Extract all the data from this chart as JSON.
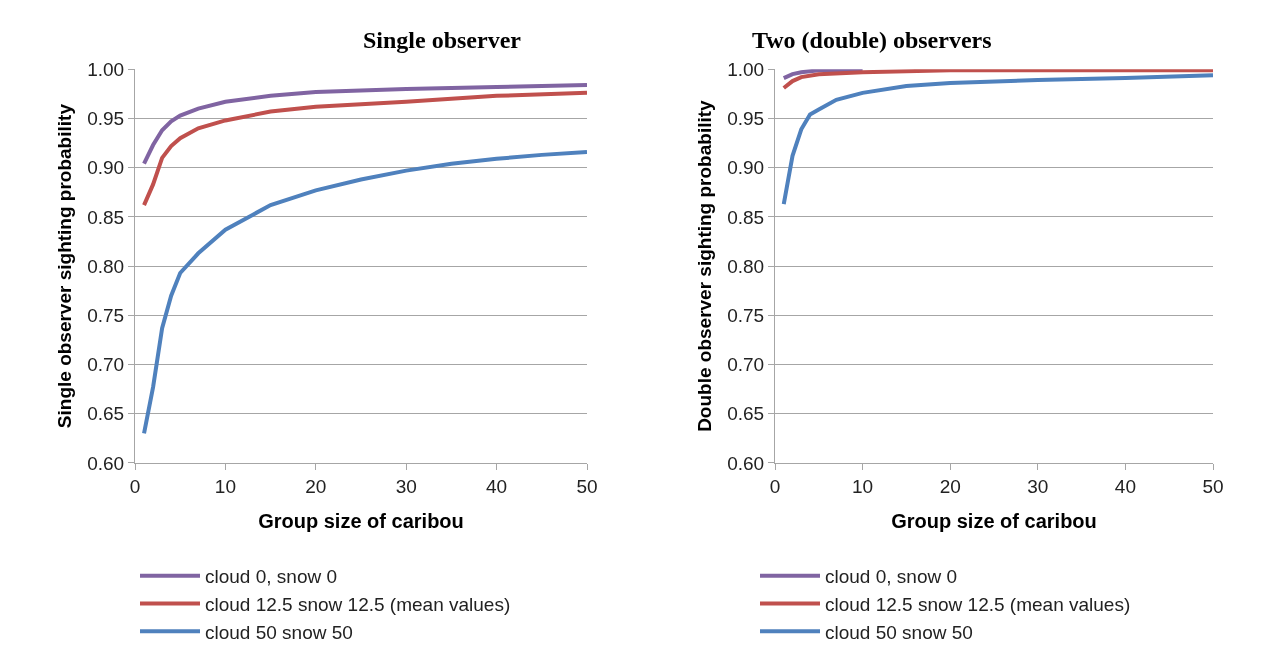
{
  "chart_data": [
    {
      "type": "line",
      "title": "Single observer",
      "xlabel": "Group size of caribou",
      "ylabel": "Single observer sighting probability",
      "xlim": [
        0,
        50
      ],
      "xticks": [
        0,
        10,
        20,
        30,
        40,
        50
      ],
      "ylim": [
        0.6,
        1.0
      ],
      "yticks": [
        {
          "value": 0.6,
          "label": "0.60"
        },
        {
          "value": 0.65,
          "label": "0.65"
        },
        {
          "value": 0.7,
          "label": "0.70"
        },
        {
          "value": 0.75,
          "label": "0.75"
        },
        {
          "value": 0.8,
          "label": "0.80"
        },
        {
          "value": 0.85,
          "label": "0.85"
        },
        {
          "value": 0.9,
          "label": "0.90"
        },
        {
          "value": 0.95,
          "label": "0.95"
        },
        {
          "value": 1.0,
          "label": "1.00"
        }
      ],
      "grid": "y",
      "legend": "bottom",
      "marker": "none",
      "line_style": "solid",
      "series": [
        {
          "name": "cloud 0, snow 0",
          "color": "#8064a2",
          "x": [
            1,
            2,
            3,
            4,
            5,
            7,
            10,
            15,
            20,
            30,
            40,
            50
          ],
          "values": [
            0.904,
            0.923,
            0.938,
            0.947,
            0.953,
            0.96,
            0.967,
            0.973,
            0.977,
            0.98,
            0.982,
            0.984
          ]
        },
        {
          "name": "cloud 12.5 snow 12.5 (mean values)",
          "color": "#c0504d",
          "x": [
            1,
            2,
            3,
            4,
            5,
            7,
            10,
            15,
            20,
            30,
            40,
            50
          ],
          "values": [
            0.862,
            0.883,
            0.91,
            0.922,
            0.93,
            0.94,
            0.948,
            0.957,
            0.962,
            0.967,
            0.973,
            0.976
          ]
        },
        {
          "name": "cloud 50 snow 50",
          "color": "#4f81bd",
          "x": [
            1,
            2,
            3,
            4,
            5,
            7,
            10,
            13,
            15,
            20,
            25,
            30,
            35,
            40,
            45,
            50
          ],
          "values": [
            0.63,
            0.677,
            0.737,
            0.77,
            0.793,
            0.813,
            0.837,
            0.852,
            0.862,
            0.877,
            0.888,
            0.897,
            0.904,
            0.909,
            0.913,
            0.916
          ]
        }
      ]
    },
    {
      "type": "line",
      "title": "Two (double) observers",
      "xlabel": "Group size of caribou",
      "ylabel": "Double observer sighting probability",
      "xlim": [
        0,
        50
      ],
      "xticks": [
        0,
        10,
        20,
        30,
        40,
        50
      ],
      "ylim": [
        0.6,
        1.0
      ],
      "yticks": [
        {
          "value": 0.6,
          "label": "0.60"
        },
        {
          "value": 0.65,
          "label": "0.65"
        },
        {
          "value": 0.7,
          "label": "0.70"
        },
        {
          "value": 0.75,
          "label": "0.75"
        },
        {
          "value": 0.8,
          "label": "0.80"
        },
        {
          "value": 0.85,
          "label": "0.85"
        },
        {
          "value": 0.9,
          "label": "0.90"
        },
        {
          "value": 0.95,
          "label": "0.95"
        },
        {
          "value": 1.0,
          "label": "1.00"
        }
      ],
      "grid": "y",
      "legend": "bottom",
      "marker": "none",
      "line_style": "solid",
      "series": [
        {
          "name": "cloud 0, snow 0",
          "color": "#8064a2",
          "x": [
            1,
            2,
            3,
            5,
            10
          ],
          "values": [
            0.991,
            0.995,
            0.997,
            0.999,
            0.999
          ]
        },
        {
          "name": "cloud 12.5 snow 12.5 (mean values)",
          "color": "#c0504d",
          "x": [
            1,
            2,
            3,
            5,
            10,
            20,
            50
          ],
          "values": [
            0.981,
            0.988,
            0.992,
            0.995,
            0.997,
            0.999,
            0.999
          ]
        },
        {
          "name": "cloud 50 snow 50",
          "color": "#4f81bd",
          "x": [
            1,
            2,
            3,
            4,
            5,
            7,
            10,
            15,
            20,
            30,
            40,
            50
          ],
          "values": [
            0.863,
            0.912,
            0.939,
            0.954,
            0.959,
            0.969,
            0.976,
            0.983,
            0.986,
            0.989,
            0.991,
            0.994
          ]
        }
      ]
    }
  ]
}
